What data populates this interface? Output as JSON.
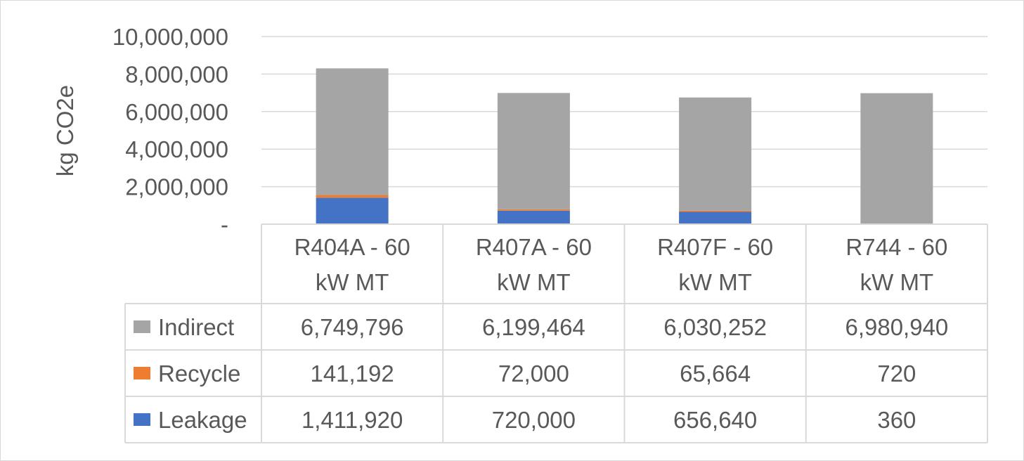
{
  "chart_data": {
    "type": "bar",
    "stacked": true,
    "title": "",
    "xlabel": "",
    "ylabel": "kg CO2e",
    "ylim": [
      0,
      10000000
    ],
    "yticks": [
      0,
      2000000,
      4000000,
      6000000,
      8000000,
      10000000
    ],
    "ytick_labels": [
      "-",
      "2,000,000",
      "4,000,000",
      "6,000,000",
      "8,000,000",
      "10,000,000"
    ],
    "grid": true,
    "legend": "data-table",
    "categories": [
      [
        "R404A - 60",
        "kW MT"
      ],
      [
        "R407A - 60",
        "kW MT"
      ],
      [
        "R407F - 60",
        "kW MT"
      ],
      [
        "R744 - 60",
        "kW MT"
      ]
    ],
    "series": [
      {
        "name": "Leakage",
        "color": "#4472c4",
        "values": [
          1411920,
          720000,
          656640,
          360
        ],
        "labels": [
          "1,411,920",
          "720,000",
          "656,640",
          "360"
        ]
      },
      {
        "name": "Recycle",
        "color": "#ed7d31",
        "values": [
          141192,
          72000,
          65664,
          720
        ],
        "labels": [
          "141,192",
          "72,000",
          "65,664",
          "720"
        ]
      },
      {
        "name": "Indirect",
        "color": "#a5a5a5",
        "values": [
          6749796,
          6199464,
          6030252,
          6980940
        ],
        "labels": [
          "6,749,796",
          "6,199,464",
          "6,030,252",
          "6,980,940"
        ]
      }
    ],
    "table_row_order": [
      "Indirect",
      "Recycle",
      "Leakage"
    ]
  }
}
